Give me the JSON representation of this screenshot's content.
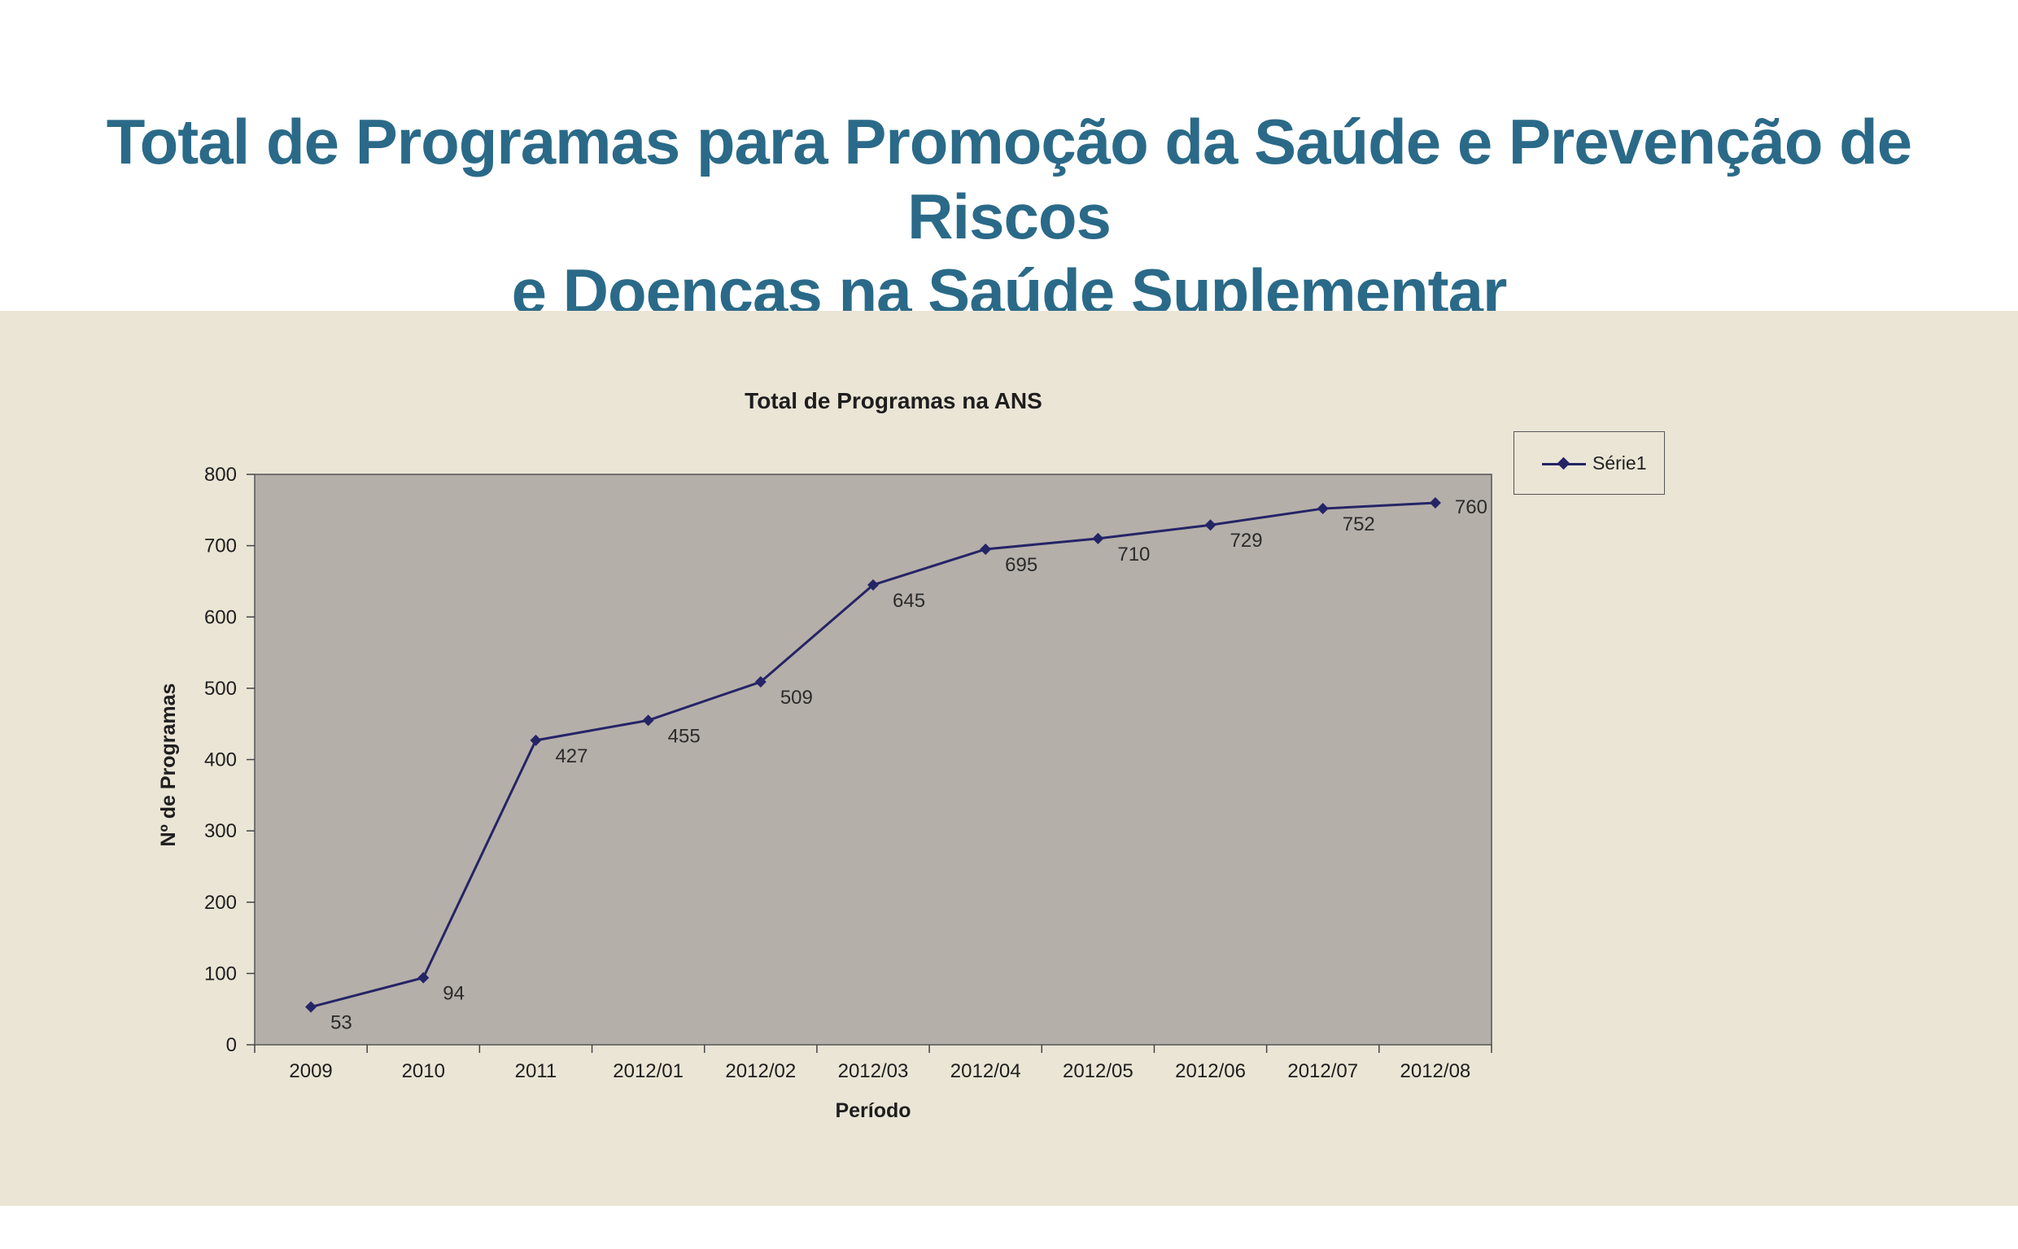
{
  "header": {
    "title_line1": "Total de Programas para Promoção da Saúde e Prevenção de Riscos",
    "title_line2": "e Doenças na Saúde Suplementar"
  },
  "colors": {
    "title": "#2a6a88",
    "band_background": "#ebe5d6",
    "plot_background": "#b5afa9",
    "series_line": "#252466"
  },
  "chart_data": {
    "type": "line",
    "title": "Total de Programas na ANS",
    "xlabel": "Período",
    "ylabel": "Nº de Programas",
    "categories": [
      "2009",
      "2010",
      "2011",
      "2012/01",
      "2012/02",
      "2012/03",
      "2012/04",
      "2012/05",
      "2012/06",
      "2012/07",
      "2012/08"
    ],
    "series": [
      {
        "name": "Série1",
        "values": [
          53,
          94,
          427,
          455,
          509,
          645,
          695,
          710,
          729,
          752,
          760
        ],
        "marker": "diamond",
        "data_labels": true
      }
    ],
    "ylim": [
      0,
      800
    ],
    "yticks": [
      0,
      100,
      200,
      300,
      400,
      500,
      600,
      700,
      800
    ],
    "grid": false,
    "legend_position": "right"
  }
}
